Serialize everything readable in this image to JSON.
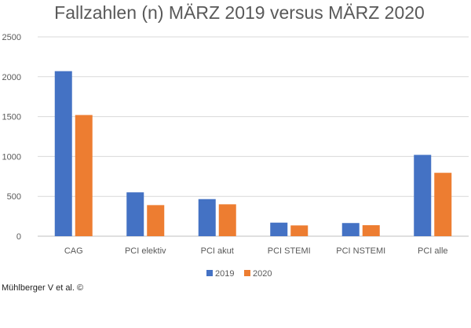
{
  "chart_data": {
    "type": "bar",
    "title": "Fallzahlen (n) MÄRZ 2019 versus MÄRZ 2020",
    "categories": [
      "CAG",
      "PCI elektiv",
      "PCI akut",
      "PCI STEMI",
      "PCI NSTEMI",
      "PCI alle"
    ],
    "series": [
      {
        "name": "2019",
        "color": "#4472C4",
        "values": [
          2070,
          550,
          465,
          170,
          165,
          1020
        ]
      },
      {
        "name": "2020",
        "color": "#ED7D31",
        "values": [
          1520,
          390,
          400,
          135,
          138,
          795
        ]
      }
    ],
    "ylim": [
      0,
      2500
    ],
    "yticks": [
      0,
      500,
      1000,
      1500,
      2000,
      2500
    ],
    "grid": true,
    "legend_position": "bottom"
  },
  "credit": "Mühlberger V et al. ©"
}
